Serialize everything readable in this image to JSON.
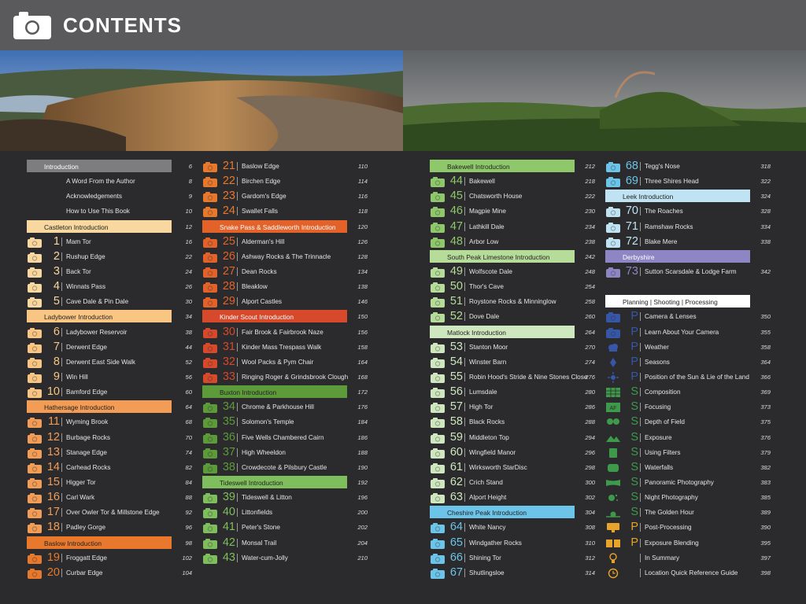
{
  "header": {
    "title": "CONTENTS"
  },
  "colors": {
    "grey": "#7d7d80",
    "castleton": "#f8d89e",
    "orange": "#e8782b",
    "orange_light": "#f29c56",
    "snake": "#e2622a",
    "kinder": "#d6492b",
    "green": "#5c9a3a",
    "green_light": "#7fbe5c",
    "bakewell": "#8ec86a",
    "pale_green": "#cfe7be",
    "cheshire": "#6cc4e8",
    "leek": "#bfe3f2",
    "purple": "#8d86c4",
    "blue": "#3656a8"
  },
  "columns": [
    [
      {
        "type": "intro",
        "label": "Introduction",
        "page": "6",
        "color": "#7d7d80",
        "labelColor": "#fff"
      },
      {
        "type": "plain",
        "label": "A Word From the Author",
        "page": "8"
      },
      {
        "type": "plain",
        "label": "Acknowledgements",
        "page": "9"
      },
      {
        "type": "plain",
        "label": "How to Use This Book",
        "page": "10"
      },
      {
        "type": "intro",
        "label": "Castleton Introduction",
        "page": "12",
        "color": "#f8d89e"
      },
      {
        "type": "entry",
        "num": "1",
        "label": "Mam Tor",
        "page": "16",
        "color": "#f8d89e"
      },
      {
        "type": "entry",
        "num": "2",
        "label": "Rushup Edge",
        "page": "22",
        "color": "#f8d89e"
      },
      {
        "type": "entry",
        "num": "3",
        "label": "Back Tor",
        "page": "24",
        "color": "#f8d89e"
      },
      {
        "type": "entry",
        "num": "4",
        "label": "Winnats Pass",
        "page": "26",
        "color": "#f8d89e"
      },
      {
        "type": "entry",
        "num": "5",
        "label": "Cave Dale & Pin Dale",
        "page": "30",
        "color": "#f8d89e"
      },
      {
        "type": "intro",
        "label": "Ladybower Introduction",
        "page": "34",
        "color": "#f9c583"
      },
      {
        "type": "entry",
        "num": "6",
        "label": "Ladybower Reservoir",
        "page": "38",
        "color": "#f9c583"
      },
      {
        "type": "entry",
        "num": "7",
        "label": "Derwent Edge",
        "page": "44",
        "color": "#f9c583"
      },
      {
        "type": "entry",
        "num": "8",
        "label": "Derwent East Side Walk",
        "page": "52",
        "color": "#f9c583"
      },
      {
        "type": "entry",
        "num": "9",
        "label": "Win Hill",
        "page": "56",
        "color": "#f9c583"
      },
      {
        "type": "entry",
        "num": "10",
        "label": "Bamford Edge",
        "page": "60",
        "color": "#f9c583"
      },
      {
        "type": "intro",
        "label": "Hathersage Introduction",
        "page": "64",
        "color": "#f29c56"
      },
      {
        "type": "entry",
        "num": "11",
        "label": "Wyming Brook",
        "page": "68",
        "color": "#f29c56"
      },
      {
        "type": "entry",
        "num": "12",
        "label": "Burbage Rocks",
        "page": "70",
        "color": "#f29c56"
      },
      {
        "type": "entry",
        "num": "13",
        "label": "Stanage Edge",
        "page": "74",
        "color": "#f29c56"
      },
      {
        "type": "entry",
        "num": "14",
        "label": "Carhead Rocks",
        "page": "82",
        "color": "#f29c56"
      },
      {
        "type": "entry",
        "num": "15",
        "label": "Higger Tor",
        "page": "84",
        "color": "#f29c56"
      },
      {
        "type": "entry",
        "num": "16",
        "label": "Carl Wark",
        "page": "88",
        "color": "#f29c56"
      },
      {
        "type": "entry",
        "num": "17",
        "label": "Over Owler Tor & Millstone Edge",
        "page": "92",
        "color": "#f29c56"
      },
      {
        "type": "entry",
        "num": "18",
        "label": "Padley Gorge",
        "page": "96",
        "color": "#f29c56"
      },
      {
        "type": "intro",
        "label": "Baslow Introduction",
        "page": "98",
        "color": "#e8782b"
      },
      {
        "type": "entry",
        "num": "19",
        "label": "Froggatt Edge",
        "page": "102",
        "color": "#e8782b"
      },
      {
        "type": "entry",
        "num": "20",
        "label": "Curbar Edge",
        "page": "104",
        "color": "#e8782b"
      }
    ],
    [
      {
        "type": "entry",
        "num": "21",
        "label": "Baslow Edge",
        "page": "110",
        "color": "#e8782b"
      },
      {
        "type": "entry",
        "num": "22",
        "label": "Birchen Edge",
        "page": "114",
        "color": "#e8782b"
      },
      {
        "type": "entry",
        "num": "23",
        "label": "Gardom's Edge",
        "page": "116",
        "color": "#e8782b"
      },
      {
        "type": "entry",
        "num": "24",
        "label": "Swallet Falls",
        "page": "118",
        "color": "#e8782b"
      },
      {
        "type": "intro",
        "label": "Snake Pass & Saddleworth Introduction",
        "page": "120",
        "color": "#e2622a",
        "labelColor": "#fff"
      },
      {
        "type": "entry",
        "num": "25",
        "label": "Alderman's Hill",
        "page": "126",
        "color": "#e2622a"
      },
      {
        "type": "entry",
        "num": "26",
        "label": "Ashway Rocks & The Trinnacle",
        "page": "128",
        "color": "#e2622a"
      },
      {
        "type": "entry",
        "num": "27",
        "label": "Dean Rocks",
        "page": "134",
        "color": "#e2622a"
      },
      {
        "type": "entry",
        "num": "28",
        "label": "Bleaklow",
        "page": "138",
        "color": "#e2622a"
      },
      {
        "type": "entry",
        "num": "29",
        "label": "Alport Castles",
        "page": "146",
        "color": "#e2622a"
      },
      {
        "type": "intro",
        "label": "Kinder Scout Introduction",
        "page": "150",
        "color": "#d6492b",
        "labelColor": "#fff"
      },
      {
        "type": "entry",
        "num": "30",
        "label": "Fair Brook & Fairbrook Naze",
        "page": "156",
        "color": "#d6492b"
      },
      {
        "type": "entry",
        "num": "31",
        "label": "Kinder Mass Trespass Walk",
        "page": "158",
        "color": "#d6492b"
      },
      {
        "type": "entry",
        "num": "32",
        "label": "Wool Packs & Pym Chair",
        "page": "164",
        "color": "#d6492b"
      },
      {
        "type": "entry",
        "num": "33",
        "label": "Ringing Roger & Grindsbrook Clough",
        "page": "168",
        "color": "#d6492b"
      },
      {
        "type": "intro",
        "label": "Buxton Introduction",
        "page": "172",
        "color": "#5c9a3a"
      },
      {
        "type": "entry",
        "num": "34",
        "label": "Chrome & Parkhouse Hill",
        "page": "176",
        "color": "#5c9a3a"
      },
      {
        "type": "entry",
        "num": "35",
        "label": "Solomon's Temple",
        "page": "184",
        "color": "#5c9a3a"
      },
      {
        "type": "entry",
        "num": "36",
        "label": "Five Wells Chambered Cairn",
        "page": "186",
        "color": "#5c9a3a"
      },
      {
        "type": "entry",
        "num": "37",
        "label": "High Wheeldon",
        "page": "188",
        "color": "#5c9a3a"
      },
      {
        "type": "entry",
        "num": "38",
        "label": "Crowdecote & Pilsbury Castle",
        "page": "190",
        "color": "#5c9a3a"
      },
      {
        "type": "intro",
        "label": "Tideswell Introduction",
        "page": "192",
        "color": "#7fbe5c"
      },
      {
        "type": "entry",
        "num": "39",
        "label": "Tideswell & Litton",
        "page": "196",
        "color": "#7fbe5c"
      },
      {
        "type": "entry",
        "num": "40",
        "label": "Littonfields",
        "page": "200",
        "color": "#7fbe5c"
      },
      {
        "type": "entry",
        "num": "41",
        "label": "Peter's Stone",
        "page": "202",
        "color": "#7fbe5c"
      },
      {
        "type": "entry",
        "num": "42",
        "label": "Monsal Trail",
        "page": "204",
        "color": "#7fbe5c"
      },
      {
        "type": "entry",
        "num": "43",
        "label": "Water-cum-Jolly",
        "page": "210",
        "color": "#7fbe5c"
      }
    ],
    [
      {
        "type": "intro",
        "label": "Bakewell Introduction",
        "page": "212",
        "color": "#8ec86a"
      },
      {
        "type": "entry",
        "num": "44",
        "label": "Bakewell",
        "page": "218",
        "color": "#8ec86a"
      },
      {
        "type": "entry",
        "num": "45",
        "label": "Chatsworth House",
        "page": "222",
        "color": "#8ec86a"
      },
      {
        "type": "entry",
        "num": "46",
        "label": "Magpie Mine",
        "page": "230",
        "color": "#8ec86a"
      },
      {
        "type": "entry",
        "num": "47",
        "label": "Lathkill Dale",
        "page": "234",
        "color": "#8ec86a"
      },
      {
        "type": "entry",
        "num": "48",
        "label": "Arbor Low",
        "page": "238",
        "color": "#8ec86a"
      },
      {
        "type": "intro",
        "label": "South Peak Limestone Introduction",
        "page": "242",
        "color": "#b6dc9a"
      },
      {
        "type": "entry",
        "num": "49",
        "label": "Wolfscote Dale",
        "page": "248",
        "color": "#b6dc9a"
      },
      {
        "type": "entry",
        "num": "50",
        "label": "Thor's Cave",
        "page": "254",
        "color": "#b6dc9a"
      },
      {
        "type": "entry",
        "num": "51",
        "label": "Roystone Rocks & Minninglow",
        "page": "258",
        "color": "#b6dc9a"
      },
      {
        "type": "entry",
        "num": "52",
        "label": "Dove Dale",
        "page": "260",
        "color": "#b6dc9a"
      },
      {
        "type": "intro",
        "label": "Matlock Introduction",
        "page": "264",
        "color": "#cfe7be"
      },
      {
        "type": "entry",
        "num": "53",
        "label": "Stanton Moor",
        "page": "270",
        "color": "#cfe7be"
      },
      {
        "type": "entry",
        "num": "54",
        "label": "Winster Barn",
        "page": "274",
        "color": "#cfe7be"
      },
      {
        "type": "entry",
        "num": "55",
        "label": "Robin Hood's Stride & Nine Stones Close",
        "page": "276",
        "color": "#cfe7be"
      },
      {
        "type": "entry",
        "num": "56",
        "label": "Lumsdale",
        "page": "280",
        "color": "#cfe7be"
      },
      {
        "type": "entry",
        "num": "57",
        "label": "High Tor",
        "page": "286",
        "color": "#cfe7be"
      },
      {
        "type": "entry",
        "num": "58",
        "label": "Black Rocks",
        "page": "288",
        "color": "#cfe7be"
      },
      {
        "type": "entry",
        "num": "59",
        "label": "Middleton Top",
        "page": "294",
        "color": "#cfe7be"
      },
      {
        "type": "entry",
        "num": "60",
        "label": "Wingfield Manor",
        "page": "296",
        "color": "#cfe7be"
      },
      {
        "type": "entry",
        "num": "61",
        "label": "Wirksworth StarDisc",
        "page": "298",
        "color": "#cfe7be"
      },
      {
        "type": "entry",
        "num": "62",
        "label": "Crich Stand",
        "page": "300",
        "color": "#cfe7be"
      },
      {
        "type": "entry",
        "num": "63",
        "label": "Alport Height",
        "page": "302",
        "color": "#cfe7be"
      },
      {
        "type": "intro",
        "label": "Cheshire Peak Introduction",
        "page": "304",
        "color": "#6cc4e8"
      },
      {
        "type": "entry",
        "num": "64",
        "label": "White Nancy",
        "page": "308",
        "color": "#6cc4e8"
      },
      {
        "type": "entry",
        "num": "65",
        "label": "Windgather Rocks",
        "page": "310",
        "color": "#6cc4e8"
      },
      {
        "type": "entry",
        "num": "66",
        "label": "Shining Tor",
        "page": "312",
        "color": "#6cc4e8"
      },
      {
        "type": "entry",
        "num": "67",
        "label": "Shutlingsloe",
        "page": "314",
        "color": "#6cc4e8"
      }
    ],
    [
      {
        "type": "entry",
        "num": "68",
        "label": "Tegg's Nose",
        "page": "318",
        "color": "#6cc4e8"
      },
      {
        "type": "entry",
        "num": "69",
        "label": "Three Shires Head",
        "page": "322",
        "color": "#6cc4e8"
      },
      {
        "type": "intro",
        "label": "Leek Introduction",
        "page": "324",
        "color": "#bfe3f2"
      },
      {
        "type": "entry",
        "num": "70",
        "label": "The Roaches",
        "page": "328",
        "color": "#bfe3f2"
      },
      {
        "type": "entry",
        "num": "71",
        "label": "Ramshaw Rocks",
        "page": "334",
        "color": "#bfe3f2"
      },
      {
        "type": "entry",
        "num": "72",
        "label": "Blake Mere",
        "page": "338",
        "color": "#bfe3f2"
      },
      {
        "type": "intro",
        "label": "Derbyshire",
        "page": "",
        "color": "#8d86c4",
        "labelColor": "#fff"
      },
      {
        "type": "entry",
        "num": "73",
        "label": "Sutton Scarsdale & Lodge Farm",
        "page": "342",
        "color": "#8d86c4"
      },
      {
        "type": "blank"
      },
      {
        "type": "intro",
        "label": "Planning | Shooting | Processing",
        "page": "",
        "color": "#ffffff"
      },
      {
        "type": "entry",
        "num": "P",
        "label": "Camera & Lenses",
        "page": "350",
        "color": "#3656a8",
        "icon": "camera"
      },
      {
        "type": "entry",
        "num": "P",
        "label": "Learn About Your Camera",
        "page": "355",
        "color": "#3656a8",
        "icon": "camera"
      },
      {
        "type": "entry",
        "num": "P",
        "label": "Weather",
        "page": "358",
        "color": "#3656a8",
        "icon": "cloud"
      },
      {
        "type": "entry",
        "num": "P",
        "label": "Seasons",
        "page": "364",
        "color": "#3656a8",
        "icon": "leaf"
      },
      {
        "type": "entry",
        "num": "P",
        "label": "Position of the Sun & Lie of the Land",
        "page": "366",
        "color": "#3656a8",
        "icon": "sun"
      },
      {
        "type": "entry",
        "num": "S",
        "label": "Composition",
        "page": "369",
        "color": "#3d9a4a",
        "icon": "grid"
      },
      {
        "type": "entry",
        "num": "S",
        "label": "Focusing",
        "page": "373",
        "color": "#3d9a4a",
        "icon": "focus"
      },
      {
        "type": "entry",
        "num": "S",
        "label": "Depth of Field",
        "page": "375",
        "color": "#3d9a4a",
        "icon": "hearts"
      },
      {
        "type": "entry",
        "num": "S",
        "label": "Exposure",
        "page": "376",
        "color": "#3d9a4a",
        "icon": "exposure"
      },
      {
        "type": "entry",
        "num": "S",
        "label": "Using Filters",
        "page": "379",
        "color": "#3d9a4a",
        "icon": "filter"
      },
      {
        "type": "entry",
        "num": "S",
        "label": "Waterfalls",
        "page": "382",
        "color": "#3d9a4a",
        "icon": "water"
      },
      {
        "type": "entry",
        "num": "S",
        "label": "Panoramic Photography",
        "page": "383",
        "color": "#3d9a4a",
        "icon": "pano"
      },
      {
        "type": "entry",
        "num": "S",
        "label": "Night Photography",
        "page": "385",
        "color": "#3d9a4a",
        "icon": "night"
      },
      {
        "type": "entry",
        "num": "S",
        "label": "The Golden Hour",
        "page": "389",
        "color": "#3d9a4a",
        "icon": "golden"
      },
      {
        "type": "entry",
        "num": "P",
        "label": "Post-Processing",
        "page": "390",
        "color": "#e8a32a",
        "icon": "monitor"
      },
      {
        "type": "entry",
        "num": "P",
        "label": "Exposure Blending",
        "page": "395",
        "color": "#e8a32a",
        "icon": "blend"
      },
      {
        "type": "entry",
        "num": "",
        "label": "In Summary",
        "page": "397",
        "color": "#e8a32a",
        "icon": "bulb"
      },
      {
        "type": "entry",
        "num": "",
        "label": "Location Quick Reference Guide",
        "page": "398",
        "color": "#e8a32a",
        "icon": "clock"
      }
    ]
  ]
}
